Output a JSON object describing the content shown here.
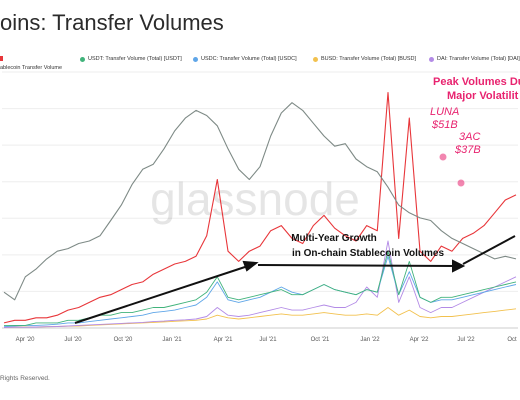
{
  "page": {
    "title": "oins: Transfer Volumes",
    "footer": "Rights Reserved.",
    "watermark": "glassnode"
  },
  "legend": {
    "items": [
      {
        "label": "USDT: Transfer Volume (Total) [USDT]",
        "color": "#41b37b"
      },
      {
        "label": "USDC: Transfer Volume (Total) [USDC]",
        "color": "#5fa6e8"
      },
      {
        "label": "BUSD: Transfer Volume (Total) [BUSD]",
        "color": "#f2c14e"
      },
      {
        "label": "DAI: Transfer Volume (Total) [DAI]",
        "color": "#b38be6"
      }
    ],
    "row2": "ablecoin Transfer Volume"
  },
  "annotations": {
    "peak_title_1": "Peak Volumes Du",
    "peak_title_2": "Major Volatilit",
    "luna_name": "LUNA",
    "luna_value": "$51B",
    "tac_name": "3AC",
    "tac_value": "$37B",
    "growth_1": "Multi-Year Growth",
    "growth_2": "in On-chain Stablecoin Volumes"
  },
  "colors": {
    "total": "#e8363a",
    "price": "#7e8a86",
    "usdt": "#41b37b",
    "usdc": "#5fa6e8",
    "busd": "#f2c14e",
    "dai": "#b38be6",
    "accent": "#e8236f"
  },
  "chart_data": {
    "type": "line",
    "x_ticks": [
      "Apr '20",
      "Jul '20",
      "Oct '20",
      "Jan '21",
      "Apr '21",
      "Jul '21",
      "Oct '21",
      "Jan '22",
      "Apr '22",
      "Jul '22",
      "Oct"
    ],
    "y_scale": "0-1 relative (axis labels not visible)",
    "series": [
      {
        "key": "price",
        "values": [
          0.14,
          0.11,
          0.2,
          0.23,
          0.27,
          0.3,
          0.31,
          0.33,
          0.34,
          0.36,
          0.42,
          0.48,
          0.56,
          0.62,
          0.64,
          0.7,
          0.77,
          0.82,
          0.85,
          0.83,
          0.79,
          0.7,
          0.62,
          0.58,
          0.63,
          0.75,
          0.84,
          0.88,
          0.85,
          0.8,
          0.75,
          0.71,
          0.72,
          0.66,
          0.63,
          0.61,
          0.55,
          0.48,
          0.45,
          0.43,
          0.42,
          0.38,
          0.35,
          0.33,
          0.31,
          0.29,
          0.27,
          0.28,
          0.27
        ]
      },
      {
        "key": "total",
        "values": [
          0.02,
          0.03,
          0.03,
          0.04,
          0.04,
          0.05,
          0.07,
          0.08,
          0.1,
          0.12,
          0.13,
          0.15,
          0.17,
          0.18,
          0.21,
          0.23,
          0.25,
          0.26,
          0.28,
          0.36,
          0.58,
          0.3,
          0.26,
          0.3,
          0.32,
          0.38,
          0.4,
          0.35,
          0.33,
          0.4,
          0.44,
          0.39,
          0.36,
          0.34,
          0.4,
          0.38,
          0.92,
          0.35,
          0.82,
          0.3,
          0.26,
          0.32,
          0.3,
          0.35,
          0.37,
          0.4,
          0.45,
          0.5,
          0.52
        ]
      },
      {
        "key": "usdt",
        "values": [
          0.01,
          0.01,
          0.01,
          0.02,
          0.02,
          0.02,
          0.03,
          0.03,
          0.04,
          0.05,
          0.05,
          0.06,
          0.06,
          0.07,
          0.08,
          0.08,
          0.09,
          0.1,
          0.11,
          0.14,
          0.2,
          0.12,
          0.11,
          0.12,
          0.13,
          0.14,
          0.15,
          0.13,
          0.13,
          0.15,
          0.17,
          0.15,
          0.14,
          0.13,
          0.15,
          0.14,
          0.3,
          0.13,
          0.26,
          0.12,
          0.1,
          0.12,
          0.12,
          0.13,
          0.14,
          0.15,
          0.16,
          0.17,
          0.18
        ]
      },
      {
        "key": "usdc",
        "values": [
          0.005,
          0.008,
          0.01,
          0.01,
          0.012,
          0.015,
          0.02,
          0.02,
          0.025,
          0.03,
          0.035,
          0.04,
          0.045,
          0.05,
          0.06,
          0.065,
          0.07,
          0.08,
          0.09,
          0.12,
          0.18,
          0.11,
          0.1,
          0.11,
          0.12,
          0.14,
          0.16,
          0.14,
          0.13,
          0.15,
          0.17,
          0.15,
          0.14,
          0.13,
          0.15,
          0.14,
          0.28,
          0.13,
          0.22,
          0.12,
          0.1,
          0.11,
          0.11,
          0.12,
          0.13,
          0.14,
          0.15,
          0.16,
          0.17
        ]
      },
      {
        "key": "busd",
        "values": [
          0.002,
          0.003,
          0.004,
          0.004,
          0.005,
          0.006,
          0.007,
          0.008,
          0.01,
          0.012,
          0.014,
          0.016,
          0.018,
          0.02,
          0.022,
          0.024,
          0.026,
          0.028,
          0.03,
          0.035,
          0.05,
          0.04,
          0.035,
          0.04,
          0.045,
          0.05,
          0.055,
          0.05,
          0.05,
          0.055,
          0.06,
          0.055,
          0.05,
          0.05,
          0.055,
          0.05,
          0.08,
          0.05,
          0.07,
          0.045,
          0.04,
          0.045,
          0.045,
          0.05,
          0.055,
          0.06,
          0.065,
          0.07,
          0.075
        ]
      },
      {
        "key": "dai",
        "values": [
          0.002,
          0.003,
          0.003,
          0.004,
          0.005,
          0.006,
          0.008,
          0.01,
          0.012,
          0.014,
          0.016,
          0.018,
          0.02,
          0.022,
          0.025,
          0.027,
          0.03,
          0.032,
          0.035,
          0.045,
          0.08,
          0.05,
          0.045,
          0.05,
          0.06,
          0.07,
          0.08,
          0.07,
          0.07,
          0.08,
          0.09,
          0.08,
          0.08,
          0.1,
          0.16,
          0.12,
          0.34,
          0.1,
          0.2,
          0.08,
          0.06,
          0.08,
          0.08,
          0.1,
          0.12,
          0.14,
          0.16,
          0.18,
          0.2
        ]
      }
    ]
  }
}
